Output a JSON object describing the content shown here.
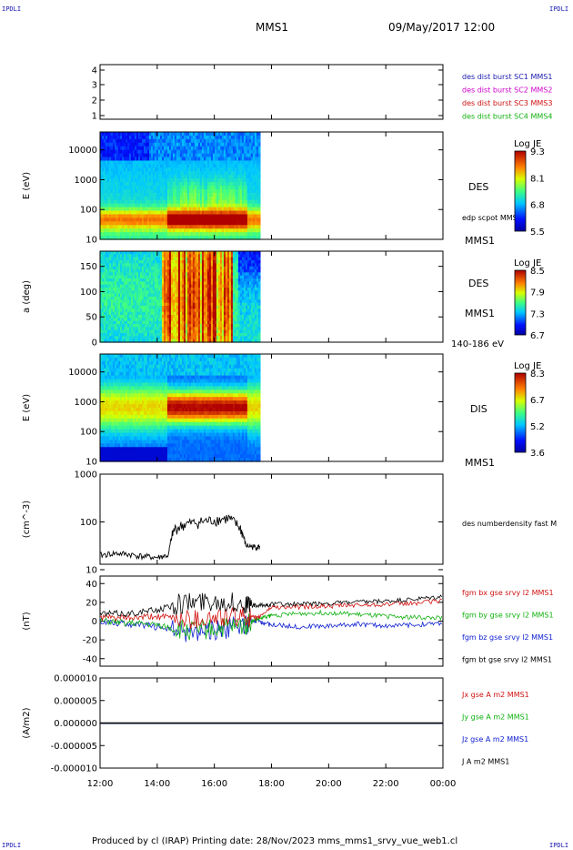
{
  "corners": {
    "tl": "IPDLI",
    "tr": "IPDLI",
    "bl": "IPDLI",
    "br": "IPDLI"
  },
  "header": {
    "spacecraft": "MMS1",
    "date": "09/May/2017 12:00"
  },
  "footer": {
    "text": "Produced by cl (IRAP)   Printing date: 28/Nov/2023   mms_mms1_srvy_vue_web1.cl"
  },
  "x_axis": {
    "ticks": [
      "12:00",
      "14:00",
      "16:00",
      "18:00",
      "20:00",
      "22:00",
      "00:00"
    ]
  },
  "chart_data": [
    {
      "type": "table",
      "panel": "spacecraft-index",
      "y_ticks": [
        "1",
        "2",
        "3",
        "4"
      ],
      "legend": [
        {
          "text": "des dist burst SC1 MMS1",
          "color": "#1a1ab0"
        },
        {
          "text": "des dist burst SC2 MMS2",
          "color": "#cc00cc"
        },
        {
          "text": "des dist burst SC3 MMS3",
          "color": "#d01010"
        },
        {
          "text": "des dist burst SC4 MMS4",
          "color": "#10b010"
        }
      ]
    },
    {
      "type": "heatmap",
      "panel": "des-energy",
      "ylabel": "E (eV)",
      "y_ticks": [
        "10",
        "100",
        "1000",
        "10000"
      ],
      "x_extent_hours": [
        12.0,
        17.6
      ],
      "right_labels": [
        "DES",
        "edp scpot MMS1",
        "MMS1"
      ],
      "colorbar": {
        "title": "Log JE",
        "ticks": [
          "9.3",
          "8.1",
          "6.8",
          "5.5"
        ]
      }
    },
    {
      "type": "heatmap",
      "panel": "des-pitch-angle",
      "ylabel": "a (deg)",
      "y_ticks": [
        "0",
        "50",
        "100",
        "150"
      ],
      "x_extent_hours": [
        12.0,
        17.6
      ],
      "right_labels": [
        "DES",
        "MMS1",
        "140-186 eV"
      ],
      "colorbar": {
        "title": "Log JE",
        "ticks": [
          "8.5",
          "7.9",
          "7.3",
          "6.7"
        ]
      }
    },
    {
      "type": "heatmap",
      "panel": "dis-energy",
      "ylabel": "E (eV)",
      "y_ticks": [
        "10",
        "100",
        "1000",
        "10000"
      ],
      "x_extent_hours": [
        12.0,
        17.6
      ],
      "right_labels": [
        "DIS",
        "MMS1"
      ],
      "colorbar": {
        "title": "Log JE",
        "ticks": [
          "8.3",
          "6.7",
          "5.2",
          "3.6"
        ]
      }
    },
    {
      "type": "line",
      "panel": "density",
      "ylabel": "(cm^-3)",
      "y_ticks": [
        "10",
        "100",
        "1000"
      ],
      "y_scale": "log",
      "series": [
        {
          "name": "des numberdensity fast M",
          "color": "#000000",
          "x": [
            12.0,
            12.5,
            13.0,
            13.5,
            14.0,
            14.4,
            14.6,
            15.0,
            15.5,
            16.0,
            16.5,
            16.9,
            17.1,
            17.4,
            17.6
          ],
          "y": [
            20,
            22,
            21,
            19,
            18,
            20,
            70,
            90,
            100,
            110,
            120,
            75,
            32,
            30,
            30
          ]
        }
      ]
    },
    {
      "type": "line",
      "panel": "magnetic-field",
      "ylabel": "(nT)",
      "y_ticks": [
        "40",
        "20",
        "0",
        "-20",
        "-40"
      ],
      "ylim": [
        -48,
        48
      ],
      "series": [
        {
          "name": "fgm bx gse srvy l2 MMS1",
          "color": "#d01010",
          "x": [
            12.0,
            13.0,
            14.0,
            15.0,
            16.0,
            17.0,
            17.5,
            18.0,
            19.0,
            20.0,
            21.0,
            22.0,
            23.0,
            24.0
          ],
          "y": [
            4,
            3,
            5,
            2,
            3,
            5,
            3,
            15,
            15,
            16,
            17,
            18,
            19,
            22
          ]
        },
        {
          "name": "fgm by gse srvy l2 MMS1",
          "color": "#10b010",
          "x": [
            12.0,
            13.0,
            14.0,
            15.0,
            16.0,
            17.0,
            17.5,
            18.0,
            19.0,
            20.0,
            21.0,
            22.0,
            23.0,
            24.0
          ],
          "y": [
            0,
            -2,
            -4,
            -10,
            -8,
            -5,
            2,
            6,
            8,
            9,
            7,
            5,
            4,
            3
          ]
        },
        {
          "name": "fgm bz gse srvy l2 MMS1",
          "color": "#1020d0",
          "x": [
            12.0,
            13.0,
            14.0,
            15.0,
            16.0,
            17.0,
            17.5,
            18.0,
            19.0,
            20.0,
            21.0,
            22.0,
            23.0,
            24.0
          ],
          "y": [
            0,
            -3,
            -6,
            -12,
            -10,
            -5,
            0,
            -4,
            -6,
            -5,
            -3,
            -5,
            -4,
            -2
          ]
        },
        {
          "name": "fgm bt gse srvy l2 MMS1",
          "color": "#000000",
          "x": [
            12.0,
            13.0,
            14.0,
            15.0,
            16.0,
            17.0,
            17.5,
            18.0,
            19.0,
            20.0,
            21.0,
            22.0,
            23.0,
            24.0
          ],
          "y": [
            8,
            8,
            12,
            20,
            22,
            18,
            16,
            18,
            18,
            19,
            20,
            21,
            23,
            26
          ]
        }
      ]
    },
    {
      "type": "line",
      "panel": "current-density",
      "ylabel": "(A/m2)",
      "y_ticks": [
        "0.000010",
        "0.000005",
        "0.000000",
        "-0.000005",
        "-0.000010"
      ],
      "ylim": [
        -1e-05,
        1e-05
      ],
      "series": [
        {
          "name": "Jx gse A m2 MMS1",
          "color": "#d01010",
          "x": [
            12.0,
            24.0
          ],
          "y": [
            0,
            0
          ]
        },
        {
          "name": "Jy gse A m2 MMS1",
          "color": "#10b010",
          "x": [
            12.0,
            24.0
          ],
          "y": [
            0,
            0
          ]
        },
        {
          "name": "Jz gse A m2 MMS1",
          "color": "#1020d0",
          "x": [
            12.0,
            24.0
          ],
          "y": [
            0,
            0
          ]
        },
        {
          "name": "J A m2 MMS1",
          "color": "#000000",
          "x": [
            12.0,
            24.0
          ],
          "y": [
            0,
            0
          ]
        }
      ]
    }
  ]
}
